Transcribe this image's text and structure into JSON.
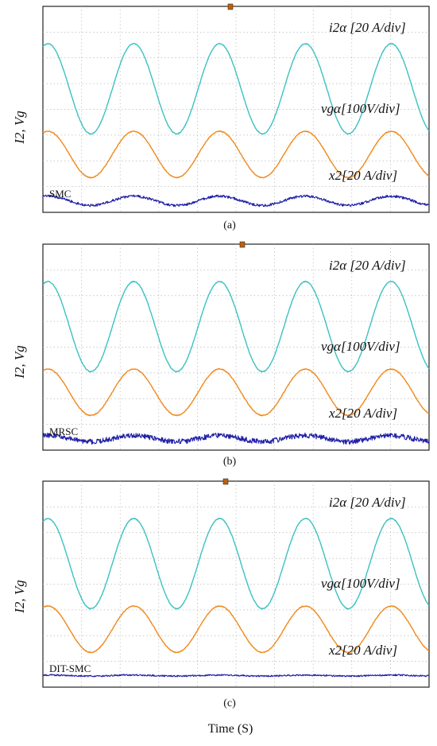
{
  "figure": {
    "xlabel": "Time (S)"
  },
  "colors": {
    "current": "#3cc1c1",
    "voltage": "#f08a1d",
    "error": "#1f1fa8",
    "grid": "#b8b8b8",
    "trigger": "#c0600a"
  },
  "chart_data": [
    {
      "type": "line",
      "caption": "(a)",
      "ylabel": "I2, Vg",
      "method": "SMC",
      "grid": true,
      "grid_divisions": {
        "x": 10,
        "y": 8
      },
      "series": [
        {
          "name": "i2α [20 A/div]",
          "shape": "sine",
          "cycles": 4.5,
          "amplitude_div": 1.75,
          "offset_div": 0.8,
          "phase": 0
        },
        {
          "name": "vgα[100V/div]",
          "shape": "sine",
          "cycles": 4.5,
          "amplitude_div": 0.9,
          "offset_div": -1.75,
          "phase": 0
        },
        {
          "name": "x2[20 A/div]",
          "shape": "ripple",
          "cycles": 4.5,
          "amplitude_div": 0.18,
          "offset_div": -3.55,
          "noise_div": 0.05
        }
      ]
    },
    {
      "type": "line",
      "caption": "(b)",
      "ylabel": "I2, Vg",
      "method": "MRSC",
      "grid": true,
      "grid_divisions": {
        "x": 10,
        "y": 8
      },
      "series": [
        {
          "name": "i2α [20 A/div]",
          "shape": "sine",
          "cycles": 4.5,
          "amplitude_div": 1.75,
          "offset_div": 0.8,
          "phase": 0
        },
        {
          "name": "vgα[100V/div]",
          "shape": "sine",
          "cycles": 4.5,
          "amplitude_div": 0.9,
          "offset_div": -1.75,
          "phase": 0
        },
        {
          "name": "x2[20 A/div]",
          "shape": "ripple",
          "cycles": 4.5,
          "amplitude_div": 0.12,
          "offset_div": -3.55,
          "noise_div": 0.1
        }
      ]
    },
    {
      "type": "line",
      "caption": "(c)",
      "ylabel": "I2, Vg",
      "method": "DIT-SMC",
      "grid": true,
      "grid_divisions": {
        "x": 10,
        "y": 8
      },
      "series": [
        {
          "name": "i2α [20 A/div]",
          "shape": "sine",
          "cycles": 4.5,
          "amplitude_div": 1.75,
          "offset_div": 0.8,
          "phase": 0
        },
        {
          "name": "vgα[100V/div]",
          "shape": "sine",
          "cycles": 4.5,
          "amplitude_div": 0.9,
          "offset_div": -1.75,
          "phase": 0
        },
        {
          "name": "x2[20 A/div]",
          "shape": "ripple",
          "cycles": 4.5,
          "amplitude_div": 0.02,
          "offset_div": -3.55,
          "noise_div": 0.03
        }
      ]
    }
  ]
}
